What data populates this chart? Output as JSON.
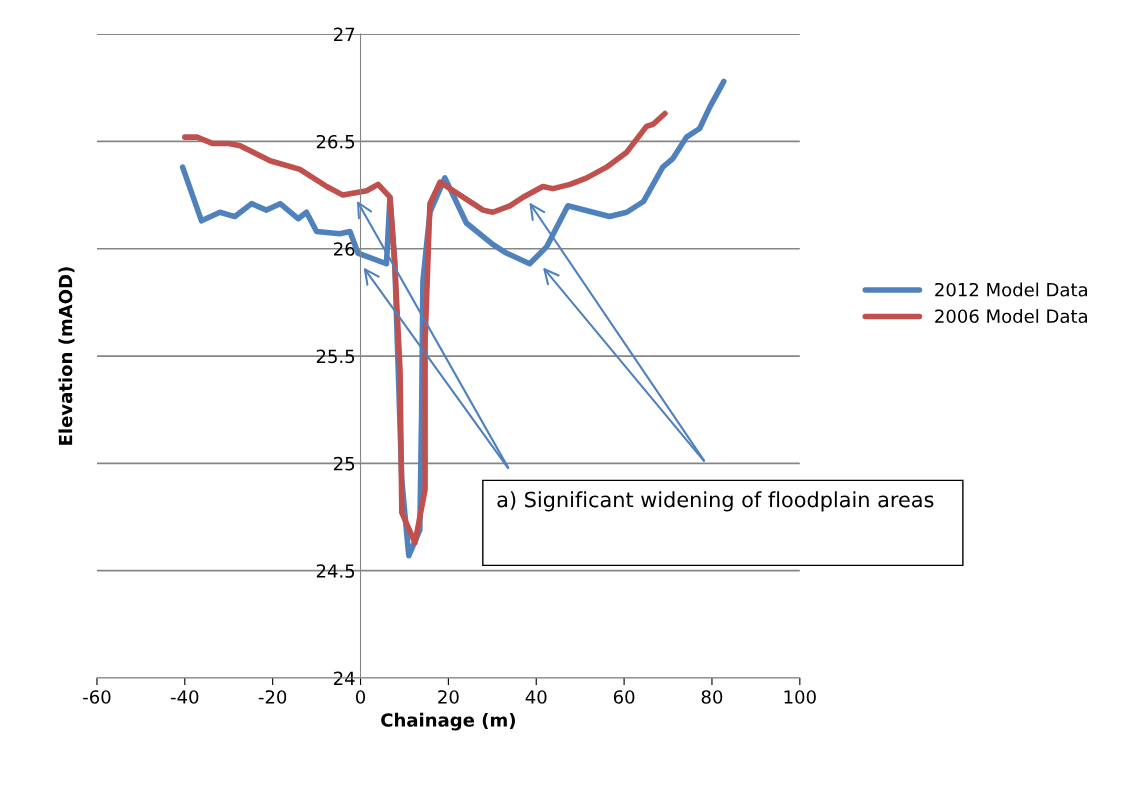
{
  "chart_data": {
    "type": "line",
    "xlabel": "Chainage (m)",
    "ylabel": "Elevation (mAOD)",
    "xlim": [
      -60,
      100
    ],
    "xticks": [
      -60,
      -40,
      -20,
      0,
      20,
      40,
      60,
      80,
      100
    ],
    "ylim": [
      24,
      27
    ],
    "yticks": [
      24,
      24.5,
      25,
      25.5,
      26,
      26.5,
      27
    ],
    "grid": "y",
    "legend": "right",
    "marker": "none",
    "line_style": "solid",
    "annotations": [
      "a) Significant widening of floodplain areas"
    ],
    "series": [
      {
        "name": "2012 Model Data",
        "color": "#4f81bd",
        "x": [
          -40.5,
          -36.2,
          -32,
          -28.6,
          -24.8,
          -21.4,
          -18.3,
          -14.2,
          -12.3,
          -10,
          -4.7,
          -2.4,
          -0.6,
          5.9,
          6.7,
          7.8,
          9.4,
          10.8,
          11,
          13.5,
          13.9,
          14.2,
          15.8,
          19.2,
          24.1,
          30.1,
          33.2,
          38.5,
          42.4,
          47.2,
          56.7,
          60.6,
          64.4,
          68.8,
          71.1,
          74.2,
          77.2,
          79.5,
          82.7
        ],
        "values": [
          26.38,
          26.13,
          26.17,
          26.15,
          26.21,
          26.18,
          26.21,
          26.14,
          26.17,
          26.08,
          26.07,
          26.08,
          25.98,
          25.93,
          26.24,
          25.93,
          24.92,
          24.61,
          24.57,
          24.69,
          25.23,
          25.85,
          26.17,
          26.33,
          26.12,
          26.02,
          25.98,
          25.93,
          26.01,
          26.2,
          26.15,
          26.17,
          26.22,
          26.38,
          26.42,
          26.52,
          26.56,
          26.66,
          26.78
        ]
      },
      {
        "name": "2006 Model Data",
        "color": "#c0504d",
        "x": [
          -40,
          -37.2,
          -33.6,
          -30,
          -27.4,
          -20.6,
          -13.8,
          -7.7,
          -4,
          1.4,
          4,
          6.7,
          7.8,
          9,
          9.4,
          12.4,
          14.7,
          14.7,
          15.8,
          18.1,
          27.9,
          30.1,
          34,
          37,
          41.5,
          43.8,
          47.7,
          51.5,
          56,
          60.6,
          65.1,
          66.6,
          69.3
        ],
        "values": [
          26.52,
          26.52,
          26.49,
          26.49,
          26.48,
          26.41,
          26.37,
          26.29,
          26.25,
          26.27,
          26.3,
          26.24,
          25.93,
          25.43,
          24.77,
          24.63,
          24.88,
          25.57,
          26.21,
          26.31,
          26.18,
          26.17,
          26.2,
          26.24,
          26.29,
          26.28,
          26.3,
          26.33,
          26.38,
          26.45,
          26.57,
          26.58,
          26.63
        ]
      }
    ]
  }
}
